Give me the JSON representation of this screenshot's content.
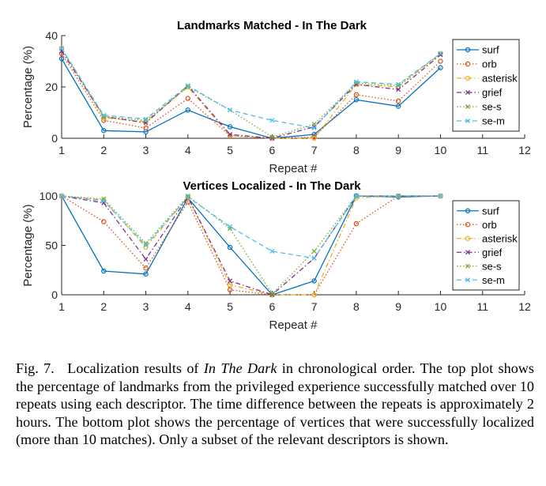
{
  "chart_data": [
    {
      "type": "line",
      "title": "Landmarks Matched - In The Dark",
      "xlabel": "Repeat #",
      "ylabel": "Percentage (%)",
      "xlim": [
        1,
        12
      ],
      "ylim": [
        0,
        40
      ],
      "xticks": [
        1,
        2,
        3,
        4,
        5,
        6,
        7,
        8,
        9,
        10,
        11,
        12
      ],
      "yticks": [
        0,
        20,
        40
      ],
      "legend_position": "top-right",
      "x": [
        1,
        2,
        3,
        4,
        5,
        6,
        7,
        8,
        9,
        10
      ],
      "series": [
        {
          "name": "surf",
          "values": [
            31,
            3,
            2.5,
            11,
            4.5,
            0,
            1.5,
            15,
            12.5,
            27.5
          ],
          "color": "#0072BD",
          "marker": "o",
          "dash": "solid"
        },
        {
          "name": "orb",
          "values": [
            33,
            7,
            4,
            15.5,
            1,
            0,
            0.5,
            17,
            14.5,
            30
          ],
          "color": "#D95319",
          "marker": "o",
          "dash": "dotted"
        },
        {
          "name": "asterisk",
          "values": [
            35,
            8,
            6.5,
            20,
            1,
            0,
            0,
            21,
            20,
            33
          ],
          "color": "#EDB120",
          "marker": "o",
          "dash": "dashdot"
        },
        {
          "name": "grief",
          "values": [
            34,
            8.5,
            6,
            20.5,
            1.5,
            0,
            4.5,
            21,
            19,
            32.5
          ],
          "color": "#7E2F8E",
          "marker": "x",
          "dash": "dashdot"
        },
        {
          "name": "se-s",
          "values": [
            35,
            8.5,
            7,
            20,
            11,
            0.5,
            5.5,
            21.5,
            20.5,
            33
          ],
          "color": "#77AC30",
          "marker": "x",
          "dash": "dotted"
        },
        {
          "name": "se-m",
          "values": [
            35,
            9,
            7.5,
            20.5,
            11,
            7,
            4,
            22,
            21,
            33
          ],
          "color": "#4DBEEE",
          "marker": "x",
          "dash": "dashed"
        }
      ]
    },
    {
      "type": "line",
      "title": "Vertices Localized - In The Dark",
      "xlabel": "Repeat #",
      "ylabel": "Percentage (%)",
      "xlim": [
        1,
        12
      ],
      "ylim": [
        0,
        100
      ],
      "xticks": [
        1,
        2,
        3,
        4,
        5,
        6,
        7,
        8,
        9,
        10,
        11,
        12
      ],
      "yticks": [
        0,
        50,
        100
      ],
      "legend_position": "top-right",
      "x": [
        1,
        2,
        3,
        4,
        5,
        6,
        7,
        8,
        9,
        10
      ],
      "series": [
        {
          "name": "surf",
          "values": [
            100,
            24,
            21,
            98,
            48,
            0,
            14,
            100,
            99,
            100
          ],
          "color": "#0072BD",
          "marker": "o",
          "dash": "solid"
        },
        {
          "name": "orb",
          "values": [
            100,
            74,
            27,
            94,
            5,
            0,
            0,
            72,
            100,
            100
          ],
          "color": "#D95319",
          "marker": "o",
          "dash": "dotted"
        },
        {
          "name": "asterisk",
          "values": [
            100,
            96,
            48,
            99,
            10,
            0,
            0,
            98,
            100,
            100
          ],
          "color": "#EDB120",
          "marker": "o",
          "dash": "dashdot"
        },
        {
          "name": "grief",
          "values": [
            100,
            93,
            36,
            99,
            14,
            0,
            37,
            100,
            100,
            100
          ],
          "color": "#7E2F8E",
          "marker": "x",
          "dash": "dashdot"
        },
        {
          "name": "se-s",
          "values": [
            100,
            97,
            52,
            100,
            67,
            1,
            44,
            100,
            100,
            100
          ],
          "color": "#77AC30",
          "marker": "x",
          "dash": "dotted"
        },
        {
          "name": "se-m",
          "values": [
            100,
            95,
            50,
            99,
            69,
            44,
            37,
            100,
            100,
            100
          ],
          "color": "#4DBEEE",
          "marker": "x",
          "dash": "dashed"
        }
      ]
    }
  ],
  "caption": {
    "label": "Fig. 7.",
    "text_before": "Localization results of ",
    "emphasis": "In The Dark",
    "text_after": " in chronological order. The top plot shows the percentage of landmarks from the privileged experience successfully matched over 10 repeats using each descriptor. The time difference between the repeats is approximately 2 hours. The bottom plot shows the percentage of vertices that were successfully localized (more than 10 matches). Only a subset of the relevant descriptors is shown."
  }
}
